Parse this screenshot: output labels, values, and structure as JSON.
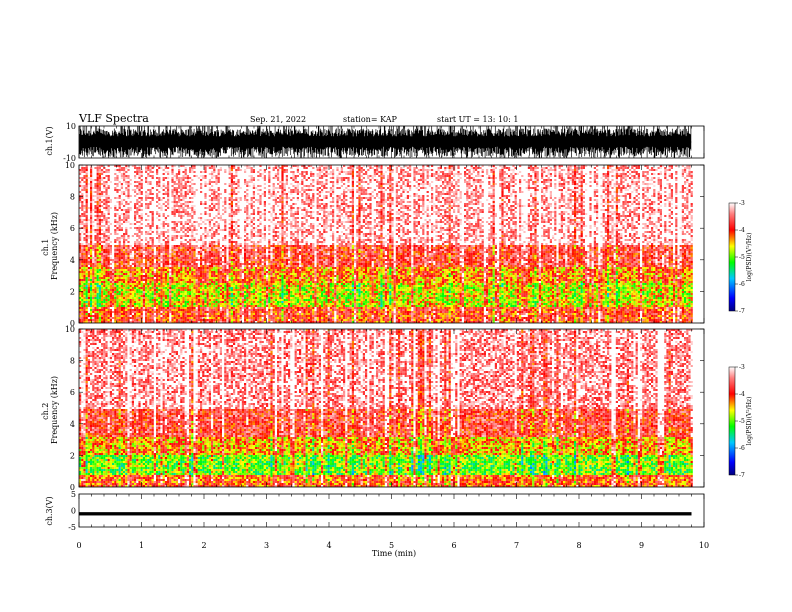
{
  "header": {
    "title": "VLF Spectra",
    "date": "Sep. 21, 2022",
    "station": "station= KAP",
    "start": "start  UT  =    13: 10: 1"
  },
  "chart_data": [
    {
      "type": "line",
      "name": "ch1-waveform",
      "ylabel": "ch.1(V)",
      "ylim": [
        -10,
        10
      ],
      "yticklabels": [
        "10",
        "-10"
      ],
      "xlim": [
        0,
        10
      ],
      "amplitude_range": [
        -10,
        10
      ]
    },
    {
      "type": "heatmap",
      "name": "ch1-spectrogram",
      "ylabel": "ch.1\nFrequency  (kHz)",
      "ylabel_lines": [
        "ch.1",
        "Frequency  (kHz)"
      ],
      "ylim": [
        0,
        10
      ],
      "yticks": [
        "0",
        "2",
        "4",
        "6",
        "8",
        "10"
      ],
      "xlim": [
        0,
        10
      ],
      "data_extent_min": 9.8,
      "bands": [
        {
          "f_low": 0,
          "f_high": 1,
          "log_psd": -4.0
        },
        {
          "f_low": 1,
          "f_high": 2.5,
          "log_psd": -4.7
        },
        {
          "f_low": 2.5,
          "f_high": 3.5,
          "log_psd": -4.3
        },
        {
          "f_low": 3.5,
          "f_high": 5,
          "log_psd": -3.8
        },
        {
          "f_low": 5,
          "f_high": 10,
          "log_psd": -3.2
        }
      ],
      "colorbar": {
        "label": "log(PSD)(V²/Hz)",
        "range": [
          -7,
          -3
        ],
        "ticks": [
          "-3",
          "-4",
          "-5",
          "-6",
          "-7"
        ]
      }
    },
    {
      "type": "heatmap",
      "name": "ch2-spectrogram",
      "ylabel": "ch.2\nFrequency  (kHz)",
      "ylabel_lines": [
        "ch.2",
        "Frequency  (kHz)"
      ],
      "ylim": [
        0,
        10
      ],
      "yticks": [
        "0",
        "2",
        "4",
        "6",
        "8",
        "10"
      ],
      "xlim": [
        0,
        10
      ],
      "data_extent_min": 9.8,
      "bands": [
        {
          "f_low": 0,
          "f_high": 0.7,
          "log_psd": -4.1
        },
        {
          "f_low": 0.7,
          "f_high": 2,
          "log_psd": -5.0
        },
        {
          "f_low": 2,
          "f_high": 3.2,
          "log_psd": -4.4
        },
        {
          "f_low": 3.2,
          "f_high": 5,
          "log_psd": -3.8
        },
        {
          "f_low": 5,
          "f_high": 10,
          "log_psd": -3.3
        }
      ],
      "colorbar": {
        "label": "log(PSD)(V²/Hz)",
        "range": [
          -7,
          -3
        ],
        "ticks": [
          "-3",
          "-4",
          "-5",
          "-6",
          "-7"
        ]
      }
    },
    {
      "type": "line",
      "name": "ch3-waveform",
      "ylabel": "ch.3(V)",
      "ylim": [
        -5,
        5
      ],
      "yticklabels": [
        "5",
        "0",
        "-5"
      ],
      "xlim": [
        0,
        10
      ],
      "level": -1,
      "amplitude_range": [
        -1.5,
        -0.5
      ]
    }
  ],
  "xaxis": {
    "label": "Time  (min)",
    "ticks": [
      "0",
      "1",
      "2",
      "3",
      "4",
      "5",
      "6",
      "7",
      "8",
      "9",
      "10"
    ]
  }
}
